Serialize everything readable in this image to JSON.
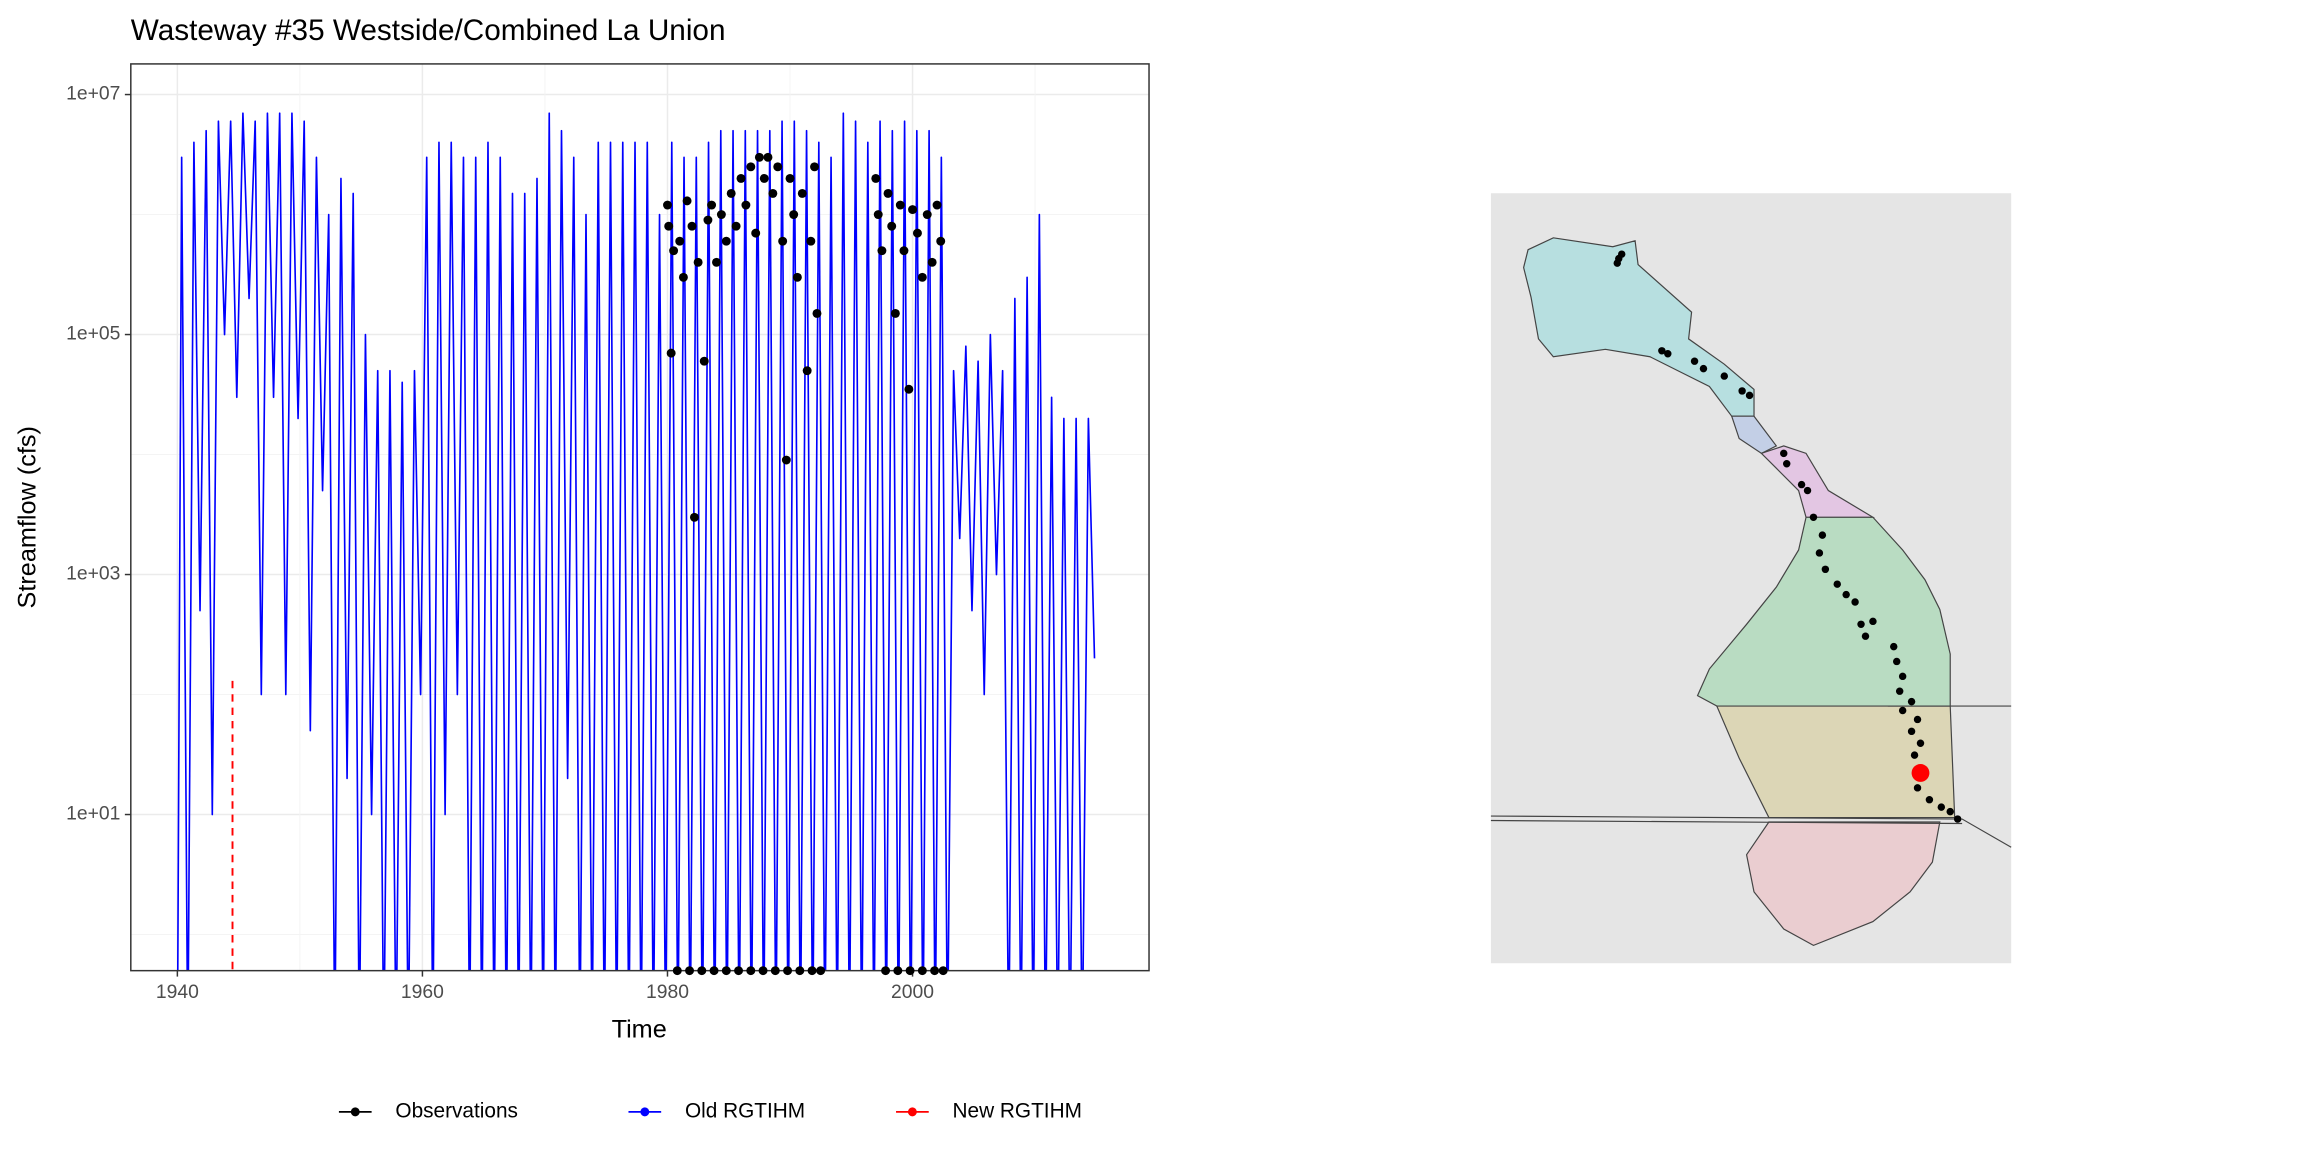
{
  "chart_data": {
    "type": "line",
    "title": "Wasteway #35  Westside/Combined La Union",
    "xlabel": "Time",
    "ylabel": "Streamflow (cfs)",
    "log_scale": true,
    "grid": true,
    "legend": "bottom",
    "xlim": [
      1936.2,
      2019.3
    ],
    "xticks": [
      1940,
      1960,
      1980,
      2000
    ],
    "ylim": [
      0.5,
      18000000
    ],
    "yticks": [
      {
        "value": 10,
        "label": "1e+01"
      },
      {
        "value": 1000,
        "label": "1e+03"
      },
      {
        "value": 100000,
        "label": "1e+05"
      },
      {
        "value": 10000000,
        "label": "1e+07"
      }
    ],
    "series": [
      {
        "name": "Observations",
        "color": "#000000",
        "style": "points",
        "x": [
          1980.0,
          1980.1,
          1980.3,
          1980.5,
          1981.0,
          1981.3,
          1981.6,
          1982.0,
          1982.2,
          1982.5,
          1983.0,
          1983.3,
          1983.6,
          1984.0,
          1984.4,
          1984.8,
          1985.2,
          1985.6,
          1986.0,
          1986.4,
          1986.8,
          1987.2,
          1987.5,
          1987.9,
          1988.2,
          1988.6,
          1989.0,
          1989.4,
          1989.7,
          1990.0,
          1990.3,
          1990.6,
          1991.0,
          1991.4,
          1991.7,
          1992.0,
          1992.2,
          1997.0,
          1997.2,
          1997.5,
          1998.0,
          1998.3,
          1998.6,
          1999.0,
          1999.3,
          1999.7,
          2000.0,
          2000.4,
          2000.8,
          2001.2,
          2001.6,
          2002.0,
          2002.3,
          1980.8,
          1981.8,
          1982.8,
          1983.8,
          1984.8,
          1985.8,
          1986.8,
          1987.8,
          1988.8,
          1989.8,
          1990.8,
          1991.8,
          1992.5,
          1997.8,
          1998.8,
          1999.8,
          2000.8,
          2001.8,
          2002.5
        ],
        "values": [
          1200000,
          800000,
          70000,
          500000,
          600000,
          300000,
          1300000,
          800000,
          3000,
          400000,
          60000,
          900000,
          1200000,
          400000,
          1000000,
          600000,
          1500000,
          800000,
          2000000,
          1200000,
          2500000,
          700000,
          3000000,
          2000000,
          3000000,
          1500000,
          2500000,
          600000,
          9000,
          2000000,
          1000000,
          300000,
          1500000,
          50000,
          600000,
          2500000,
          150000,
          2000000,
          1000000,
          500000,
          1500000,
          800000,
          150000,
          1200000,
          500000,
          35000,
          1100000,
          700000,
          300000,
          1000000,
          400000,
          1200000,
          600000,
          0,
          0,
          0,
          0,
          0,
          0,
          0,
          0,
          0,
          0,
          0,
          0,
          0,
          0,
          0,
          0,
          0,
          0,
          0
        ]
      },
      {
        "name": "Old RGTIHM",
        "color": "#0000ff",
        "style": "line",
        "x": [
          1940.0,
          1940.35,
          1940.85,
          1941.35,
          1941.85,
          1942.35,
          1942.85,
          1943.35,
          1943.85,
          1944.35,
          1944.85,
          1945.35,
          1945.85,
          1946.35,
          1946.85,
          1947.35,
          1947.85,
          1948.35,
          1948.85,
          1949.35,
          1949.85,
          1950.35,
          1950.85,
          1951.35,
          1951.85,
          1952.35,
          1952.85,
          1953.35,
          1953.85,
          1954.35,
          1954.85,
          1955.35,
          1955.85,
          1956.35,
          1956.85,
          1957.35,
          1957.85,
          1958.35,
          1958.85,
          1959.35,
          1959.85,
          1960.35,
          1960.85,
          1961.35,
          1961.85,
          1962.35,
          1962.85,
          1963.35,
          1963.85,
          1964.35,
          1964.85,
          1965.35,
          1965.85,
          1966.35,
          1966.85,
          1967.35,
          1967.85,
          1968.35,
          1968.85,
          1969.35,
          1969.85,
          1970.35,
          1970.85,
          1971.35,
          1971.85,
          1972.35,
          1972.85,
          1973.35,
          1973.85,
          1974.35,
          1974.85,
          1975.35,
          1975.85,
          1976.35,
          1976.85,
          1977.35,
          1977.85,
          1978.35,
          1978.85,
          1979.35,
          1979.85,
          1980.35,
          1980.85,
          1981.35,
          1981.85,
          1982.35,
          1982.85,
          1983.35,
          1983.85,
          1984.35,
          1984.85,
          1985.35,
          1985.85,
          1986.35,
          1986.85,
          1987.35,
          1987.85,
          1988.35,
          1988.85,
          1989.35,
          1989.85,
          1990.35,
          1990.85,
          1991.35,
          1991.85,
          1992.35,
          1992.85,
          1993.35,
          1993.85,
          1994.35,
          1994.85,
          1995.35,
          1995.85,
          1996.35,
          1996.85,
          1997.35,
          1997.85,
          1998.35,
          1998.85,
          1999.35,
          1999.85,
          2000.35,
          2000.85,
          2001.35,
          2001.85,
          2002.35,
          2002.85,
          2003.35,
          2003.85,
          2004.35,
          2004.85,
          2005.35,
          2005.85,
          2006.35,
          2006.85,
          2007.35,
          2007.85,
          2008.35,
          2008.85,
          2009.35,
          2009.85,
          2010.35,
          2010.85,
          2011.35,
          2011.85,
          2012.35,
          2012.85,
          2013.35,
          2013.85,
          2014.35,
          2014.85
        ],
        "values": [
          0,
          3000000,
          0,
          4000000,
          500,
          5000000,
          10,
          6000000,
          100000,
          6000000,
          30000,
          7000000,
          200000,
          6000000,
          100,
          7000000,
          30000,
          7000000,
          100,
          7000000,
          20000,
          6000000,
          50,
          3000000,
          5000,
          1000000,
          0,
          2000000,
          20,
          1500000,
          0,
          100000,
          10,
          50000,
          0,
          50000,
          0,
          40000,
          0,
          50000,
          100,
          3000000,
          0,
          4000000,
          10,
          4000000,
          100,
          3000000,
          0,
          3000000,
          0,
          4000000,
          0,
          3000000,
          0,
          1500000,
          0,
          1500000,
          0,
          2000000,
          0,
          7000000,
          0,
          5000000,
          20,
          3000000,
          0,
          1000000,
          0,
          4000000,
          0,
          4000000,
          0,
          4000000,
          0,
          4000000,
          0,
          4000000,
          0,
          1000000,
          0,
          4000000,
          0,
          3000000,
          0,
          3000000,
          0,
          4000000,
          0,
          5000000,
          0,
          5000000,
          0,
          5000000,
          0,
          5000000,
          0,
          5000000,
          0,
          6000000,
          0,
          6000000,
          0,
          5000000,
          0,
          4000000,
          0,
          3000000,
          0,
          7000000,
          0,
          6000000,
          0,
          4000000,
          0,
          6000000,
          0,
          5000000,
          0,
          6000000,
          0,
          5000000,
          0,
          5000000,
          0,
          3000000,
          0,
          50000,
          2000,
          80000,
          500,
          60000,
          100,
          100000,
          1000,
          50000,
          0,
          200000,
          0,
          300000,
          0,
          1000000,
          0,
          30000,
          0,
          20000,
          0,
          20000,
          0,
          20000,
          200
        ]
      },
      {
        "name": "New RGTIHM",
        "color": "#ff0000",
        "style": "dashed",
        "x": [
          1944.5,
          1944.5
        ],
        "values": [
          130,
          0
        ]
      }
    ]
  }
}
